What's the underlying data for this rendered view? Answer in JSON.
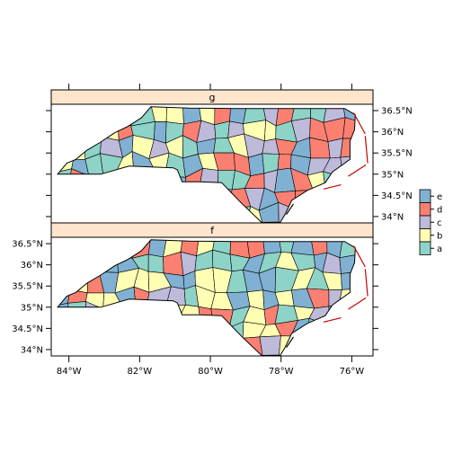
{
  "chart_data": {
    "type": "choropleth map",
    "panels": [
      {
        "strip": "g",
        "seed": 7
      },
      {
        "strip": "f",
        "seed": 23
      }
    ],
    "x_axis": {
      "range": [
        -84.5,
        -75.4
      ],
      "ticks": [
        {
          "value": -84,
          "label": "84°W"
        },
        {
          "value": -82,
          "label": "82°W"
        },
        {
          "value": -80,
          "label": "80°W"
        },
        {
          "value": -78,
          "label": "78°W"
        },
        {
          "value": -76,
          "label": "76°W"
        }
      ]
    },
    "y_axis": {
      "range": [
        33.85,
        36.65
      ],
      "ticks": [
        {
          "value": 34.0,
          "label": "34°N"
        },
        {
          "value": 34.5,
          "label": "34.5°N"
        },
        {
          "value": 35.0,
          "label": "35°N"
        },
        {
          "value": 35.5,
          "label": "35.5°N"
        },
        {
          "value": 36.0,
          "label": "36°N"
        },
        {
          "value": 36.5,
          "label": "36.5°N"
        }
      ]
    },
    "legend": {
      "placement": "right",
      "categories": [
        "e",
        "d",
        "c",
        "b",
        "a"
      ],
      "colors": [
        "#80b1d3",
        "#fb8072",
        "#bebada",
        "#ffffb3",
        "#8dd3c7"
      ]
    }
  },
  "style": {
    "strip_bg": "#ffe5cc",
    "map_edge": "#000000",
    "coast_color": "#cc0000"
  }
}
